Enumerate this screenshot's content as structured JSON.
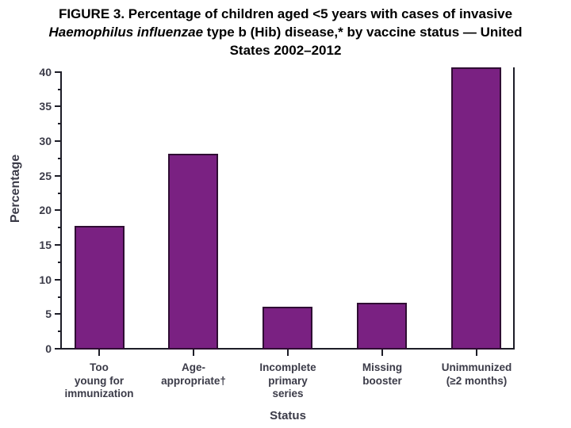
{
  "title": {
    "line1": "FIGURE 3. Percentage of children aged <5 years with cases of invasive",
    "line2_italic": "Haemophilus influenzae",
    "line2_rest": " type b (Hib) disease,* by vaccine status — United",
    "line3": "States 2002–2012"
  },
  "chart_data": {
    "type": "bar",
    "title": "FIGURE 3. Percentage of children aged <5 years with cases of invasive Haemophilus influenzae type b (Hib) disease,* by vaccine status — United States 2002–2012",
    "categories": [
      "Too young for immunization",
      "Age-appropriate†",
      "Incomplete primary series",
      "Missing booster",
      "Unimmunized (≥2 months)"
    ],
    "category_lines": [
      [
        "Too",
        "young for",
        "immunization"
      ],
      [
        "Age-",
        "appropriate†"
      ],
      [
        "Incomplete",
        "primary",
        "series"
      ],
      [
        "Missing",
        "booster"
      ],
      [
        "Unimmunized",
        "(≥2 months)"
      ]
    ],
    "values": [
      17.7,
      28.2,
      6.1,
      6.6,
      40.7
    ],
    "xlabel": "Status",
    "ylabel": "Percentage",
    "ylim": [
      0,
      40
    ],
    "y_major_ticks": [
      0,
      5,
      10,
      15,
      20,
      25,
      30,
      35,
      40
    ],
    "y_minor_step": 2.5,
    "grid": false,
    "legend": "none",
    "bar_color": "#7a2182",
    "bar_border_color": "#2f0d33",
    "axis_color": "#1d1d27",
    "label_color": "#3b3b48"
  }
}
